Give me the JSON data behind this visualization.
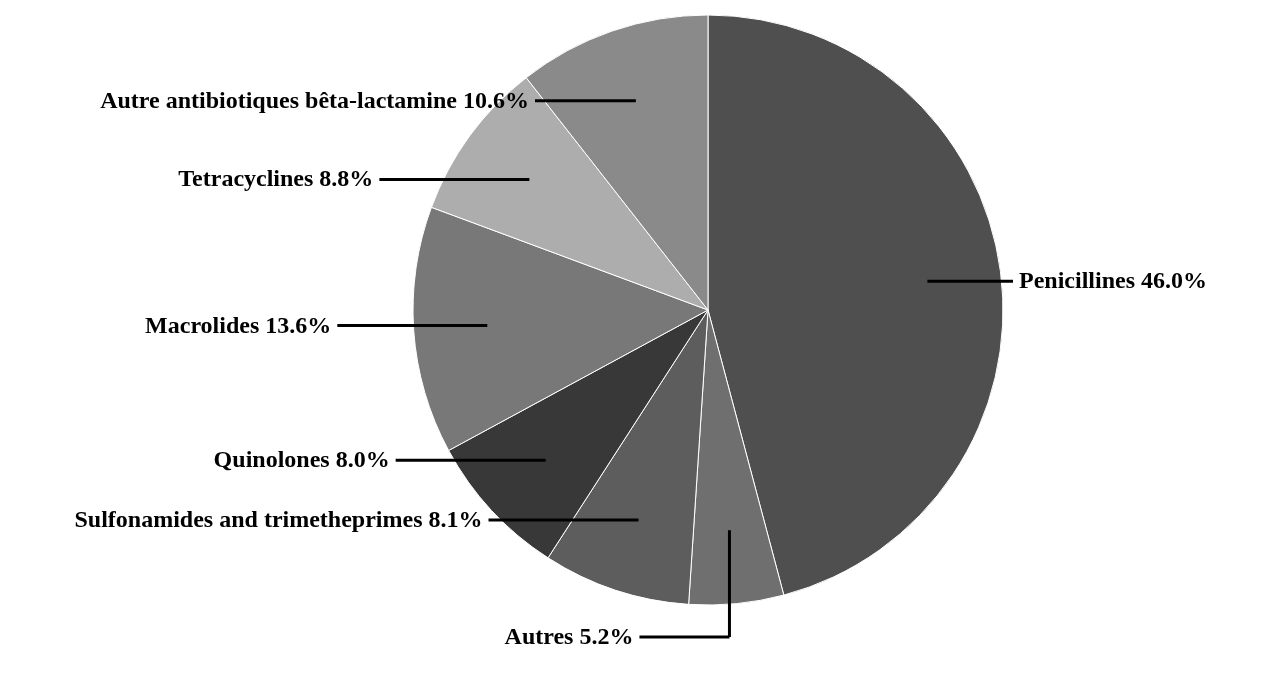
{
  "chart_data": {
    "type": "pie",
    "categories": [
      "Penicillines",
      "Autres",
      "Sulfonamides and trimetheprimes",
      "Quinolones",
      "Macrolides",
      "Tetracyclines",
      "Autre antibiotiques bêta-lactamine"
    ],
    "values": [
      46.0,
      5.2,
      8.1,
      8.0,
      13.6,
      8.8,
      10.6
    ],
    "value_labels": [
      "46.0%",
      "5.2%",
      "8.1%",
      "8.0%",
      "13.6%",
      "8.8%",
      "10.6%"
    ],
    "colors": [
      "#4f4f4f",
      "#6f6f6f",
      "#5d5d5d",
      "#383838",
      "#787878",
      "#adadad",
      "#8a8a8a"
    ],
    "legend": false
  }
}
